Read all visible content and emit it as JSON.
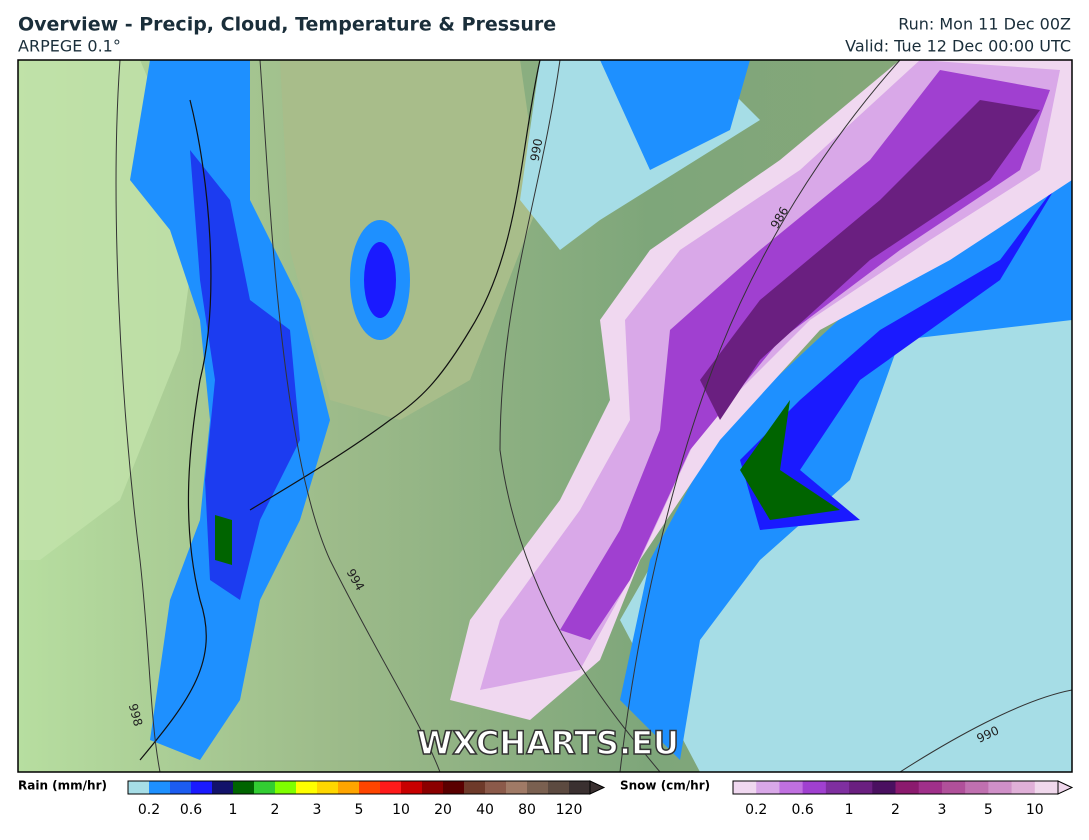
{
  "header": {
    "title": "Overview - Precip, Cloud, Temperature & Pressure",
    "model": "ARPEGE 0.1°",
    "run": "Run: Mon 11 Dec 00Z",
    "valid": "Valid: Tue 12 Dec 00:00 UTC"
  },
  "map": {
    "watermark": "WXCHARTS.EU",
    "isobar_labels": [
      990,
      986,
      994,
      998,
      990
    ]
  },
  "legend": {
    "rain": {
      "label": "Rain (mm/hr)",
      "ticks": [
        0.2,
        0.6,
        1,
        2,
        3,
        5,
        10,
        20,
        40,
        80,
        120
      ],
      "colors": [
        "#a6dde6",
        "#1e90ff",
        "#1c5cf0",
        "#1a1aff",
        "#12126a",
        "#006400",
        "#32cd32",
        "#7fff00",
        "#ffff00",
        "#ffd700",
        "#ffa500",
        "#ff4500",
        "#ff1a1a",
        "#c80000",
        "#8b0000",
        "#5a0000",
        "#6e3a2a",
        "#8b5a4a",
        "#a07a66",
        "#7a6050",
        "#5c4a40",
        "#3a3030"
      ]
    },
    "snow": {
      "label": "Snow (cm/hr)",
      "ticks": [
        0.2,
        0.6,
        1,
        2,
        3,
        5,
        10
      ],
      "colors": [
        "#f0d8f0",
        "#d9a8e8",
        "#c070e0",
        "#a040d0",
        "#7f2fa0",
        "#6a1f80",
        "#4a1060",
        "#8b1a6e",
        "#a0308a",
        "#b0509a",
        "#c070b0",
        "#d090c8",
        "#e0b0d8",
        "#f0d8ec"
      ]
    }
  }
}
